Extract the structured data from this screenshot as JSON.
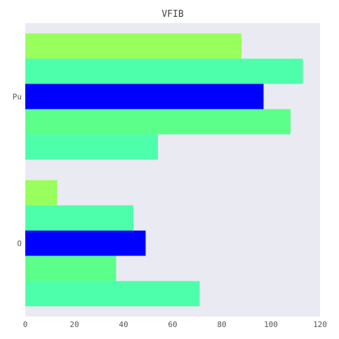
{
  "chart_data": {
    "type": "bar",
    "orientation": "horizontal",
    "title": "VFIB",
    "xlabel": "",
    "ylabel": "",
    "categories": [
      "Pu",
      "O"
    ],
    "xlim": [
      0,
      120
    ],
    "x_ticks": [
      0,
      20,
      40,
      60,
      80,
      100,
      120
    ],
    "grid": false,
    "legend": "none",
    "series": [
      {
        "color": "#99ff5c",
        "values": [
          88,
          13
        ]
      },
      {
        "color": "#4dffaa",
        "values": [
          113,
          44
        ]
      },
      {
        "color": "#0000ff",
        "values": [
          97,
          49
        ]
      },
      {
        "color": "#5cff8a",
        "values": [
          108,
          37
        ]
      },
      {
        "color": "#4dffaa",
        "values": [
          54,
          71
        ]
      }
    ]
  }
}
